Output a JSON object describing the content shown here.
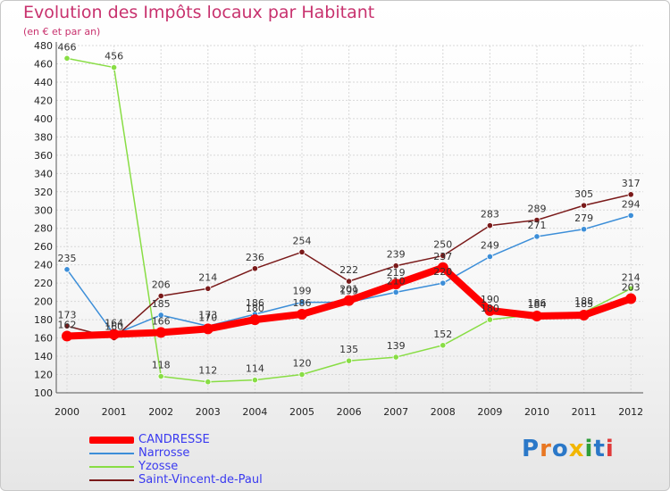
{
  "chart_data": {
    "type": "line",
    "title": "Evolution des Impôts locaux par Habitant",
    "subtitle": "(en € et par an)",
    "x": [
      "2000",
      "2001",
      "2002",
      "2003",
      "2004",
      "2005",
      "2006",
      "2007",
      "2008",
      "2009",
      "2010",
      "2011",
      "2012"
    ],
    "ylim": [
      100,
      480
    ],
    "yticks": [
      100,
      120,
      140,
      160,
      180,
      200,
      220,
      240,
      260,
      280,
      300,
      320,
      340,
      360,
      380,
      400,
      420,
      440,
      460,
      480
    ],
    "grid": true,
    "legend_position": "bottom-left",
    "series": [
      {
        "name": "CANDRESSE",
        "color": "#ff0000",
        "values": [
          162,
          164,
          166,
          170,
          180,
          186,
          201,
          219,
          237,
          190,
          184,
          185,
          203
        ]
      },
      {
        "name": "Narrosse",
        "color": "#3c8ed8",
        "values": [
          235,
          164,
          185,
          173,
          186,
          199,
          199,
          210,
          220,
          249,
          271,
          279,
          294
        ]
      },
      {
        "name": "Yzosse",
        "color": "#88dd44",
        "values": [
          466,
          456,
          118,
          112,
          114,
          120,
          135,
          139,
          152,
          180,
          186,
          188,
          214
        ]
      },
      {
        "name": "Saint-Vincent-de-Paul",
        "color": "#7a1a1a",
        "values": [
          173,
          160,
          206,
          214,
          236,
          254,
          222,
          239,
          250,
          283,
          289,
          305,
          317
        ]
      }
    ],
    "data_labels": [
      {
        "text": "466",
        "x": "2000",
        "y": 466
      },
      {
        "text": "456",
        "x": "2001",
        "y": 456
      },
      {
        "text": "235",
        "x": "2000",
        "y": 235
      },
      {
        "text": "173",
        "x": "2000",
        "y": 173
      },
      {
        "text": "162",
        "x": "2000",
        "y": 162
      },
      {
        "text": "164",
        "x": "2001",
        "y": 164
      },
      {
        "text": "160",
        "x": "2001",
        "y": 160
      },
      {
        "text": "206",
        "x": "2002",
        "y": 206
      },
      {
        "text": "185",
        "x": "2002",
        "y": 185
      },
      {
        "text": "166",
        "x": "2002",
        "y": 166
      },
      {
        "text": "118",
        "x": "2002",
        "y": 118
      },
      {
        "text": "214",
        "x": "2003",
        "y": 214
      },
      {
        "text": "173",
        "x": "2003",
        "y": 173
      },
      {
        "text": "170",
        "x": "2003",
        "y": 170
      },
      {
        "text": "112",
        "x": "2003",
        "y": 112
      },
      {
        "text": "236",
        "x": "2004",
        "y": 236
      },
      {
        "text": "186",
        "x": "2004",
        "y": 186
      },
      {
        "text": "180",
        "x": "2004",
        "y": 180
      },
      {
        "text": "114",
        "x": "2004",
        "y": 114
      },
      {
        "text": "254",
        "x": "2005",
        "y": 254
      },
      {
        "text": "199",
        "x": "2005",
        "y": 199
      },
      {
        "text": "186",
        "x": "2005",
        "y": 186
      },
      {
        "text": "120",
        "x": "2005",
        "y": 120
      },
      {
        "text": "222",
        "x": "2006",
        "y": 222
      },
      {
        "text": "201",
        "x": "2006",
        "y": 201
      },
      {
        "text": "199",
        "x": "2006",
        "y": 199
      },
      {
        "text": "135",
        "x": "2006",
        "y": 135
      },
      {
        "text": "239",
        "x": "2007",
        "y": 239
      },
      {
        "text": "219",
        "x": "2007",
        "y": 219
      },
      {
        "text": "210",
        "x": "2007",
        "y": 210
      },
      {
        "text": "139",
        "x": "2007",
        "y": 139
      },
      {
        "text": "250",
        "x": "2008",
        "y": 250
      },
      {
        "text": "237",
        "x": "2008",
        "y": 237
      },
      {
        "text": "220",
        "x": "2008",
        "y": 220
      },
      {
        "text": "152",
        "x": "2008",
        "y": 152
      },
      {
        "text": "283",
        "x": "2009",
        "y": 283
      },
      {
        "text": "249",
        "x": "2009",
        "y": 249
      },
      {
        "text": "190",
        "x": "2009",
        "y": 190
      },
      {
        "text": "180",
        "x": "2009",
        "y": 180
      },
      {
        "text": "289",
        "x": "2010",
        "y": 289
      },
      {
        "text": "271",
        "x": "2010",
        "y": 271
      },
      {
        "text": "186",
        "x": "2010",
        "y": 186
      },
      {
        "text": "184",
        "x": "2010",
        "y": 184
      },
      {
        "text": "305",
        "x": "2011",
        "y": 305
      },
      {
        "text": "279",
        "x": "2011",
        "y": 279
      },
      {
        "text": "188",
        "x": "2011",
        "y": 188
      },
      {
        "text": "185",
        "x": "2011",
        "y": 185
      },
      {
        "text": "317",
        "x": "2012",
        "y": 317
      },
      {
        "text": "294",
        "x": "2012",
        "y": 294
      },
      {
        "text": "214",
        "x": "2012",
        "y": 214
      },
      {
        "text": "203",
        "x": "2012",
        "y": 203
      }
    ]
  },
  "logo": {
    "letters": [
      "P",
      "r",
      "o",
      "x",
      "i",
      "t",
      "i"
    ]
  }
}
